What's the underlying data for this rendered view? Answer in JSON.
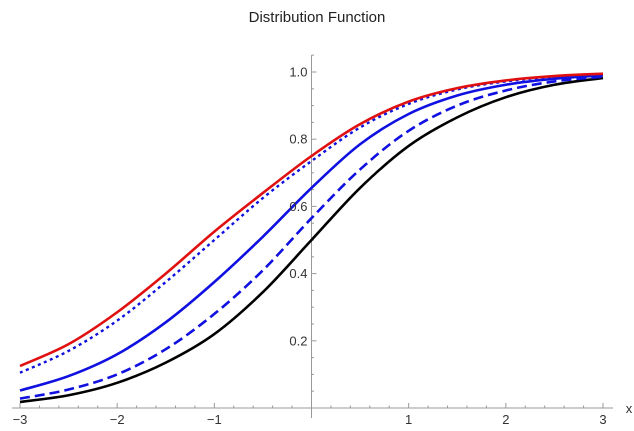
{
  "chart_data": {
    "type": "line",
    "title": "Distribution Function",
    "xlabel": "x",
    "ylabel": "",
    "xlim": [
      -3,
      3
    ],
    "ylim": [
      0,
      1.05
    ],
    "x_ticks": [
      -3,
      -2,
      -1,
      1,
      2,
      3
    ],
    "x_tick_labels": [
      "−3",
      "−2",
      "−1",
      "1",
      "2",
      "3"
    ],
    "y_ticks": [
      0.2,
      0.4,
      0.6,
      0.8,
      1.0
    ],
    "y_tick_labels": [
      "0.2",
      "0.4",
      "0.6",
      "0.8",
      "1.0"
    ],
    "grid": false,
    "legend": "none",
    "x": [
      -3,
      -2.5,
      -2,
      -1.5,
      -1,
      -0.5,
      0,
      0.5,
      1,
      1.5,
      2,
      2.5,
      3
    ],
    "series": [
      {
        "color": "#000000",
        "style": "solid",
        "values": [
          0.018,
          0.038,
          0.075,
          0.135,
          0.22,
          0.345,
          0.5,
          0.655,
          0.78,
          0.865,
          0.925,
          0.962,
          0.982
        ]
      },
      {
        "color": "#1010e0",
        "style": "dashed",
        "values": [
          0.028,
          0.055,
          0.1,
          0.175,
          0.28,
          0.41,
          0.565,
          0.71,
          0.825,
          0.9,
          0.945,
          0.972,
          0.986
        ]
      },
      {
        "color": "#1010e0",
        "style": "solid",
        "values": [
          0.052,
          0.095,
          0.16,
          0.255,
          0.375,
          0.51,
          0.655,
          0.785,
          0.875,
          0.93,
          0.962,
          0.98,
          0.99
        ]
      },
      {
        "color": "#1010e0",
        "style": "dotted",
        "values": [
          0.105,
          0.17,
          0.26,
          0.375,
          0.5,
          0.625,
          0.735,
          0.835,
          0.905,
          0.948,
          0.972,
          0.986,
          0.993
        ]
      },
      {
        "color": "#e01010",
        "style": "solid",
        "values": [
          0.125,
          0.19,
          0.285,
          0.4,
          0.525,
          0.64,
          0.75,
          0.845,
          0.912,
          0.952,
          0.975,
          0.988,
          0.995
        ]
      }
    ]
  }
}
